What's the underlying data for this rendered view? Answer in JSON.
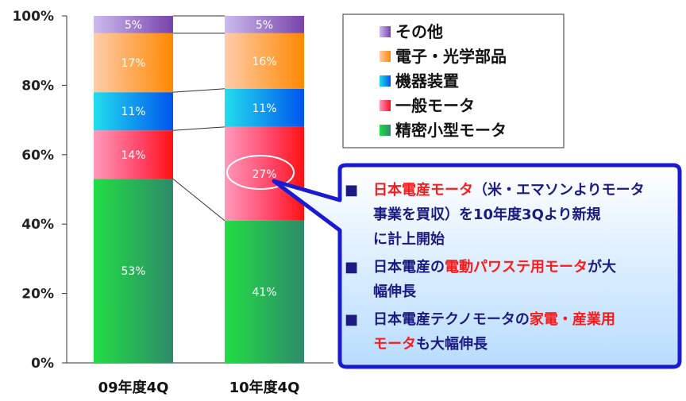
{
  "chart_data": {
    "type": "bar",
    "stacked": true,
    "percent": true,
    "categories": [
      "09年度4Q",
      "10年度4Q"
    ],
    "series": [
      {
        "name": "精密小型モータ",
        "values": [
          53,
          41
        ],
        "color": "#22bb44"
      },
      {
        "name": "一般モータ",
        "values": [
          14,
          27
        ],
        "color": "#ff3355"
      },
      {
        "name": "機器装置",
        "values": [
          11,
          11
        ],
        "color": "#1199ee"
      },
      {
        "name": "電子・光学部品",
        "values": [
          17,
          16
        ],
        "color": "#ff9933"
      },
      {
        "name": "その他",
        "values": [
          5,
          5
        ],
        "color": "#8866cc"
      }
    ],
    "labels": [
      [
        "53%",
        "14%",
        "11%",
        "17%",
        "5%"
      ],
      [
        "41%",
        "27%",
        "11%",
        "16%",
        "5%"
      ]
    ],
    "yticks": [
      "0%",
      "20%",
      "40%",
      "60%",
      "80%",
      "100%"
    ],
    "ylim": [
      0,
      100
    ],
    "legend_order": [
      "その他",
      "電子・光学部品",
      "機器装置",
      "一般モータ",
      "精密小型モータ"
    ],
    "legend_placement": "top-right"
  },
  "callout": {
    "bullets": [
      {
        "lines": [
          [
            {
              "t": "日本電産モータ",
              "red": true
            },
            {
              "t": "（米・エマソンよりモータ"
            }
          ],
          [
            {
              "t": "事業を買収）を10年度3Qより新規"
            }
          ],
          [
            {
              "t": "に計上開始"
            }
          ]
        ]
      },
      {
        "lines": [
          [
            {
              "t": "日本電産の"
            },
            {
              "t": "電動パワステ用モータ",
              "red": true
            },
            {
              "t": "が大"
            }
          ],
          [
            {
              "t": "幅伸長"
            }
          ]
        ]
      },
      {
        "lines": [
          [
            {
              "t": "日本電産テクノモータの"
            },
            {
              "t": "家電・産業用",
              "red": true
            }
          ],
          [
            {
              "t": "モータ",
              "red": true
            },
            {
              "t": "も大幅伸長"
            }
          ]
        ]
      }
    ],
    "bullet_glyph": "■"
  }
}
